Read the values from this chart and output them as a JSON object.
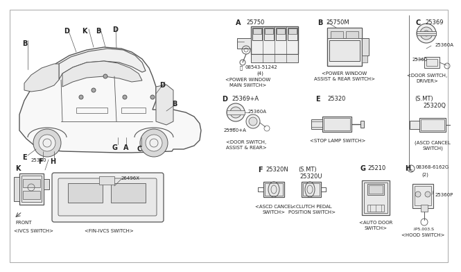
{
  "background_color": "#f0f0f0",
  "line_color": "#555555",
  "text_color": "#222222",
  "fig_width": 6.4,
  "fig_height": 3.72,
  "border_color": "#aaaaaa",
  "sections": {
    "A": {
      "letter": "A",
      "part1": "25750",
      "desc1": "<POWER WINDOW",
      "desc2": "MAIN SWITCH>",
      "sub": "08543-51242",
      "sub2": "(4)"
    },
    "B": {
      "letter": "B",
      "part1": "25750M",
      "desc1": "<POWER WINDOW",
      "desc2": "ASSIST & REAR SWITCH>"
    },
    "C": {
      "letter": "C",
      "part1": "25369",
      "part2": "25360A",
      "part3": "25360",
      "desc1": "<DOOR SWITCH,",
      "desc2": "DRIVER>"
    },
    "D": {
      "letter": "D",
      "part1": "25369+A",
      "part2": "25360A",
      "part3": "25360+A",
      "desc1": "<DOOR SWITCH,",
      "desc2": "ASSIST & REAR>"
    },
    "E": {
      "letter": "E",
      "part1": "25320",
      "desc1": "<STOP LAMP SWITCH>"
    },
    "F": {
      "letter": "F",
      "part1": "25320N",
      "desc1": "<ASCD CANCEL",
      "desc2": "SWITCH>"
    },
    "G": {
      "letter": "G",
      "part1": "25210",
      "desc1": "<AUTO DOOR",
      "desc2": "SWITCH>"
    },
    "H": {
      "letter": "H",
      "part1": "08368-6162G",
      "part2": "(2)",
      "part3": "25360P",
      "desc1": "<HOOD SWITCH>",
      "sub": ".IP5.003.S"
    },
    "K": {
      "letter": "K",
      "part1": "253B0",
      "desc1": "<IVCS SWITCH>"
    },
    "SMT_C": {
      "part1": "(S.MT)",
      "part2": "25320Q",
      "desc1": "(ASCD CANCEL",
      "desc2": "SWITCH)"
    },
    "SMT_F": {
      "part1": "(S.MT)",
      "part2": "25320U",
      "desc1": "<CLUTCH PEDAL",
      "desc2": "POSITION SWITCH>"
    },
    "FIN": {
      "part1": "26496X",
      "desc1": "<FIN-IVCS SWITCH>"
    }
  }
}
